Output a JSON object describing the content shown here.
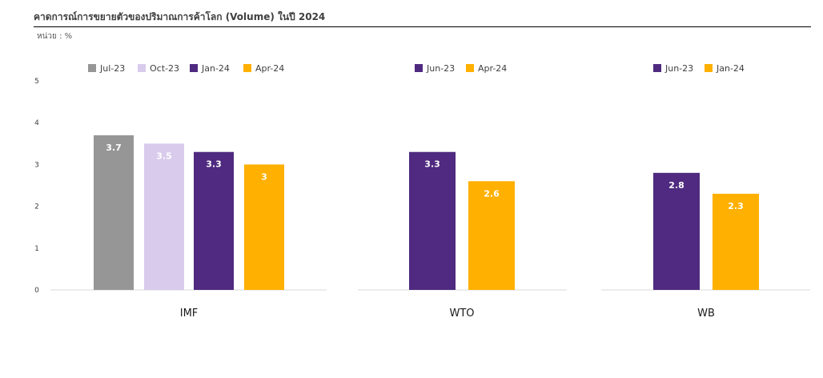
{
  "title": "คาดการณ์การขยายตัวของปริมาณการค้าโลก (Volume) ในปี 2024",
  "unit_label": "หน่วย : %",
  "chart_data": {
    "type": "bar",
    "y_ticks": [
      0,
      1,
      2,
      3,
      4,
      5
    ],
    "ylim": [
      0,
      5
    ],
    "grid": false,
    "legend_position": "top",
    "groups": [
      {
        "name": "IMF",
        "series": [
          {
            "name": "Jul-23",
            "value": 3.7,
            "label": "3.7",
            "color": "#969696"
          },
          {
            "name": "Oct-23",
            "value": 3.5,
            "label": "3.5",
            "color": "#d9cbec"
          },
          {
            "name": "Jan-24",
            "value": 3.3,
            "label": "3.3",
            "color": "#4f2a80"
          },
          {
            "name": "Apr-24",
            "value": 3.0,
            "label": "3",
            "color": "#ffb000"
          }
        ]
      },
      {
        "name": "WTO",
        "series": [
          {
            "name": "Jun-23",
            "value": 3.3,
            "label": "3.3",
            "color": "#4f2a80"
          },
          {
            "name": "Apr-24",
            "value": 2.6,
            "label": "2.6",
            "color": "#ffb000"
          }
        ]
      },
      {
        "name": "WB",
        "series": [
          {
            "name": "Jun-23",
            "value": 2.8,
            "label": "2.8",
            "color": "#4f2a80"
          },
          {
            "name": "Jan-24",
            "value": 2.3,
            "label": "2.3",
            "color": "#ffb000"
          }
        ]
      }
    ]
  }
}
